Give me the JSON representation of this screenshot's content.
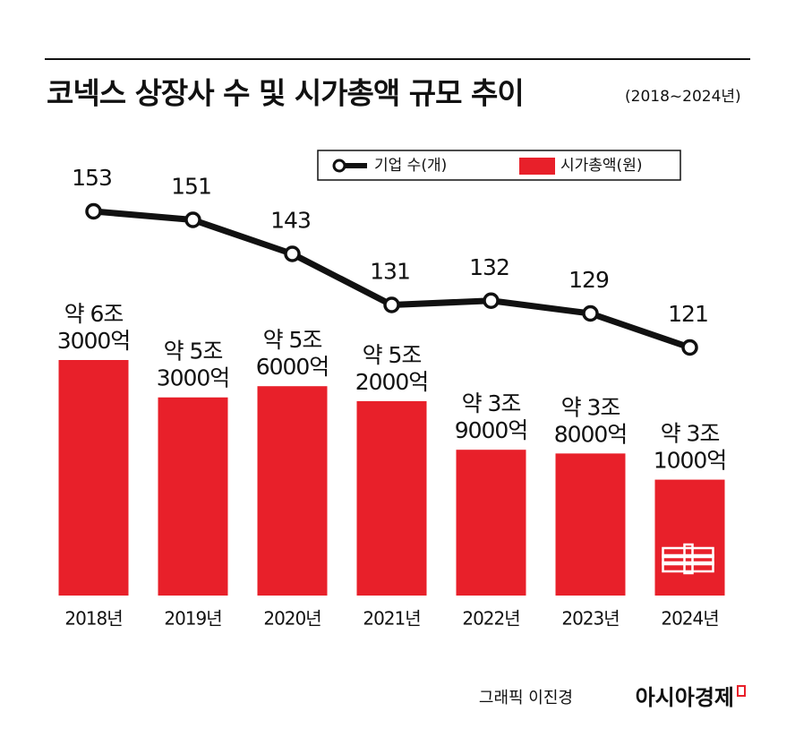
{
  "chart_data": {
    "type": "combo",
    "title": "코넥스 상장사 수 및 시가총액 규모 추이",
    "subtitle": "(2018~2024년)",
    "categories": [
      "2018년",
      "2019년",
      "2020년",
      "2021년",
      "2022년",
      "2023년",
      "2024년"
    ],
    "series": [
      {
        "name": "시가총액(원)",
        "type": "bar",
        "color": "#e8202a",
        "values": [
          63000,
          53000,
          56000,
          52000,
          39000,
          38000,
          31000
        ],
        "value_labels": [
          [
            "약 6조",
            "3000억"
          ],
          [
            "약 5조",
            "3000억"
          ],
          [
            "약 5조",
            "6000억"
          ],
          [
            "약 5조",
            "2000억"
          ],
          [
            "약 3조",
            "9000억"
          ],
          [
            "약 3조",
            "8000억"
          ],
          [
            "약 3조",
            "1000억"
          ]
        ]
      },
      {
        "name": "기업 수(개)",
        "type": "line",
        "color": "#111111",
        "values": [
          153,
          151,
          143,
          131,
          132,
          129,
          121
        ]
      }
    ],
    "credit": "그래픽 이진경",
    "source": "아시아경제"
  }
}
